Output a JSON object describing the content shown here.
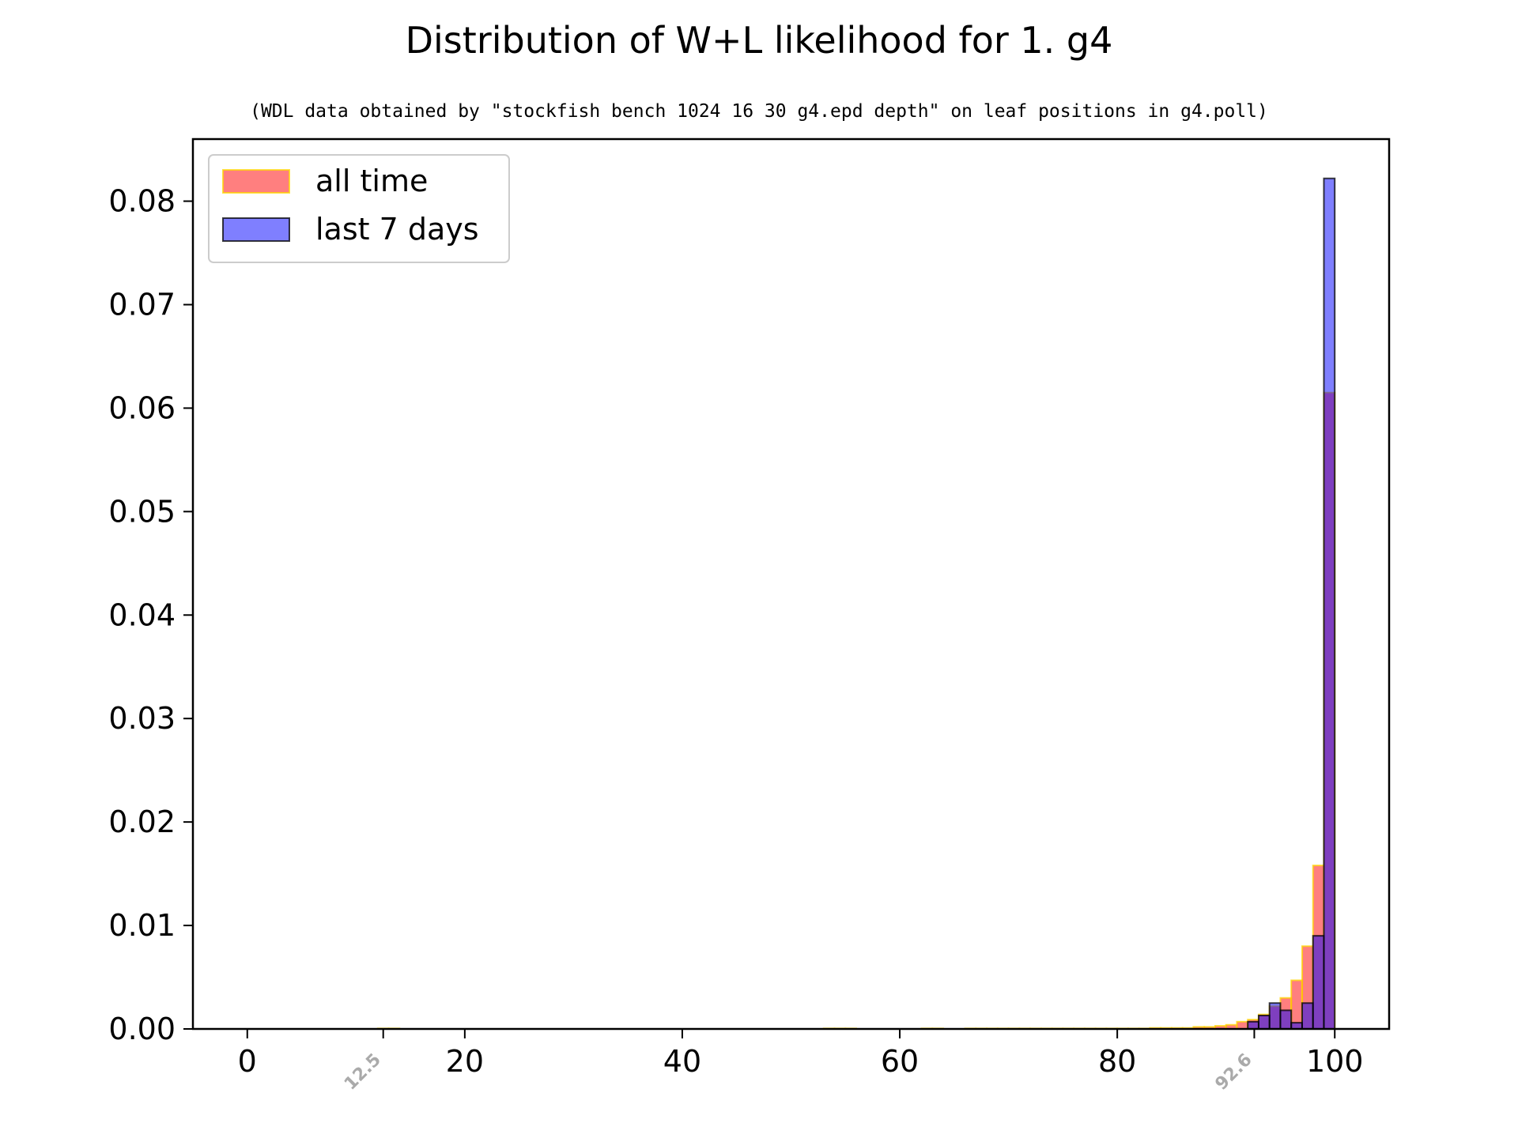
{
  "chart_data": {
    "type": "bar",
    "title": "Distribution of W+L likelihood for 1. g4",
    "subtitle": "(WDL data obtained by \"stockfish bench 1024 16 30 g4.epd depth\" on leaf positions in g4.poll)",
    "xlabel": "",
    "ylabel": "",
    "xlim": [
      -5,
      105
    ],
    "ylim": [
      0,
      0.086
    ],
    "bin_width": 1,
    "x_ticks": [
      0,
      20,
      40,
      60,
      80,
      100
    ],
    "x_tick_labels": [
      "0",
      "20",
      "40",
      "60",
      "80",
      "100"
    ],
    "y_ticks": [
      0,
      0.01,
      0.02,
      0.03,
      0.04,
      0.05,
      0.06,
      0.07,
      0.08
    ],
    "y_tick_labels": [
      "0.00",
      "0.01",
      "0.02",
      "0.03",
      "0.04",
      "0.05",
      "0.06",
      "0.07",
      "0.08"
    ],
    "markers": [
      {
        "x": 12.5,
        "label": "12.5"
      },
      {
        "x": 92.6,
        "label": "92.6"
      }
    ],
    "legend_position": "top-left",
    "series": [
      {
        "name": "all time",
        "fill": "#ff0000",
        "edge": "#ffd700",
        "alpha": 0.5,
        "bins": [
          [
            12,
            5e-05
          ],
          [
            13,
            5e-05
          ],
          [
            53,
            5e-05
          ],
          [
            54,
            5e-05
          ],
          [
            55,
            5e-05
          ],
          [
            62,
            5e-05
          ],
          [
            63,
            5e-05
          ],
          [
            66,
            5e-05
          ],
          [
            67,
            5e-05
          ],
          [
            68,
            5e-05
          ],
          [
            69,
            5e-05
          ],
          [
            70,
            5e-05
          ],
          [
            71,
            5e-05
          ],
          [
            72,
            5e-05
          ],
          [
            73,
            5e-05
          ],
          [
            74,
            5e-05
          ],
          [
            75,
            5e-05
          ],
          [
            76,
            5e-05
          ],
          [
            77,
            5e-05
          ],
          [
            78,
            5e-05
          ],
          [
            79,
            5e-05
          ],
          [
            80,
            5e-05
          ],
          [
            81,
            5e-05
          ],
          [
            82,
            5e-05
          ],
          [
            83,
            0.0001
          ],
          [
            84,
            0.0001
          ],
          [
            85,
            0.0001
          ],
          [
            86,
            0.0001
          ],
          [
            87,
            0.0002
          ],
          [
            88,
            0.0002
          ],
          [
            89,
            0.0003
          ],
          [
            90,
            0.0004
          ],
          [
            91,
            0.0007
          ],
          [
            92,
            0.0009
          ],
          [
            93,
            0.0014
          ],
          [
            94,
            0.0022
          ],
          [
            95,
            0.003
          ],
          [
            96,
            0.0047
          ],
          [
            97,
            0.008
          ],
          [
            98,
            0.0158
          ],
          [
            99,
            0.0615
          ]
        ]
      },
      {
        "name": "last 7 days",
        "fill": "#0000ff",
        "edge": "#000000",
        "alpha": 0.5,
        "bins": [
          [
            92,
            0.0007
          ],
          [
            93,
            0.0013
          ],
          [
            94,
            0.0025
          ],
          [
            95,
            0.0018
          ],
          [
            96,
            0.0006
          ],
          [
            97,
            0.0025
          ],
          [
            98,
            0.009
          ],
          [
            99,
            0.0822
          ]
        ]
      }
    ]
  }
}
